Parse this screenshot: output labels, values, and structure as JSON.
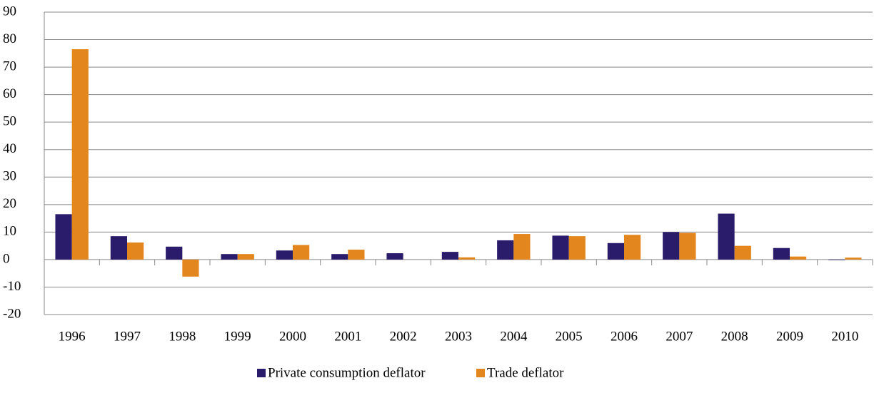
{
  "chart_data": {
    "type": "bar",
    "categories": [
      "1996",
      "1997",
      "1998",
      "1999",
      "2000",
      "2001",
      "2002",
      "2003",
      "2004",
      "2005",
      "2006",
      "2007",
      "2008",
      "2009",
      "2010"
    ],
    "series": [
      {
        "name": "Private consumption deflator",
        "color": "#2b1b6b",
        "values": [
          16.5,
          8.5,
          4.7,
          2.0,
          3.3,
          2.0,
          2.3,
          2.8,
          7.0,
          8.7,
          6.0,
          10.0,
          16.7,
          4.2,
          -0.2
        ]
      },
      {
        "name": "Trade deflator",
        "color": "#e3861d",
        "values": [
          76.5,
          6.2,
          -6.2,
          2.0,
          5.3,
          3.6,
          0,
          0.8,
          9.3,
          8.5,
          9.0,
          9.7,
          5.0,
          1.1,
          0.7
        ]
      }
    ],
    "ylim": [
      -20,
      90
    ],
    "yticks": [
      -20,
      -10,
      0,
      10,
      20,
      30,
      40,
      50,
      60,
      70,
      80,
      90
    ],
    "grid": true,
    "legend": "bottom"
  }
}
